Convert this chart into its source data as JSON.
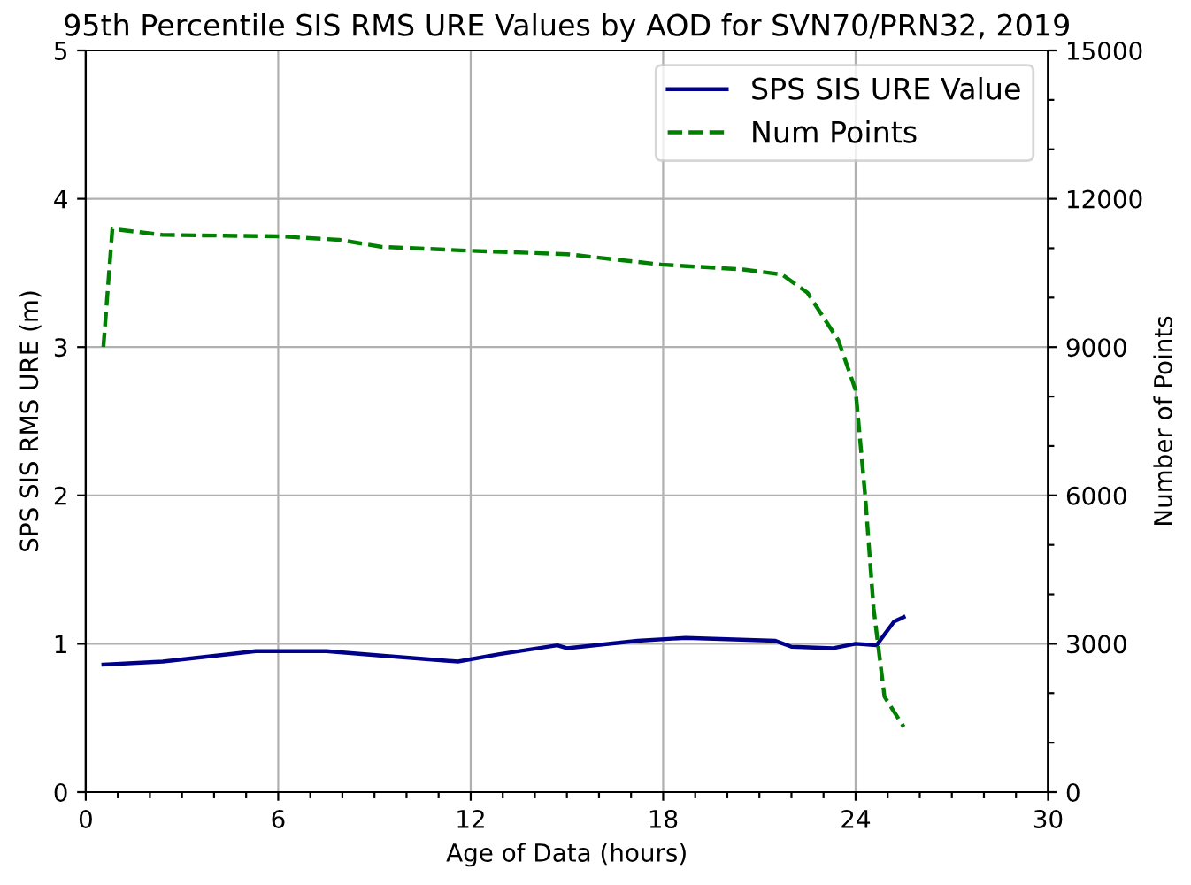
{
  "chart_data": {
    "type": "line",
    "title": "95th Percentile SIS RMS URE Values by AOD for SVN70/PRN32, 2019",
    "xlabel": "Age of Data (hours)",
    "ylabel": "SPS SIS RMS URE (m)",
    "y2label": "Number of Points",
    "xlim": [
      0,
      30
    ],
    "xticks": [
      0,
      {
        "value": 1,
        "label": null
      },
      {
        "value": 2,
        "label": null
      },
      {
        "value": 3,
        "label": null
      },
      {
        "value": 4,
        "label": null
      },
      {
        "value": 5,
        "label": null
      },
      6,
      {
        "value": 7,
        "label": null
      },
      {
        "value": 8,
        "label": null
      },
      {
        "value": 9,
        "label": null
      },
      {
        "value": 10,
        "label": null
      },
      {
        "value": 11,
        "label": null
      },
      12,
      {
        "value": 13,
        "label": null
      },
      {
        "value": 14,
        "label": null
      },
      {
        "value": 15,
        "label": null
      },
      {
        "value": 16,
        "label": null
      },
      {
        "value": 17,
        "label": null
      },
      18,
      {
        "value": 19,
        "label": null
      },
      {
        "value": 20,
        "label": null
      },
      {
        "value": 21,
        "label": null
      },
      {
        "value": 22,
        "label": null
      },
      {
        "value": 23,
        "label": null
      },
      24,
      {
        "value": 25,
        "label": null
      },
      {
        "value": 26,
        "label": null
      },
      {
        "value": 27,
        "label": null
      },
      {
        "value": 28,
        "label": null
      },
      {
        "value": 29,
        "label": null
      },
      30
    ],
    "ylim": [
      0,
      5
    ],
    "yticks": [
      0,
      1,
      2,
      3,
      4,
      5
    ],
    "y2lim": [
      0,
      15000
    ],
    "y2ticks": [
      0,
      {
        "value": 1000,
        "label": null
      },
      {
        "value": 2000,
        "label": null
      },
      3000,
      {
        "value": 4000,
        "label": null
      },
      {
        "value": 5000,
        "label": null
      },
      6000,
      {
        "value": 7000,
        "label": null
      },
      {
        "value": 8000,
        "label": null
      },
      9000,
      {
        "value": 10000,
        "label": null
      },
      {
        "value": 11000,
        "label": null
      },
      12000,
      {
        "value": 13000,
        "label": null
      },
      {
        "value": 14000,
        "label": null
      },
      15000
    ],
    "grid": true,
    "legend": "top right",
    "series": [
      {
        "name": "SPS SIS URE Value",
        "color": "#00008b",
        "line_style": "solid",
        "x": [
          0.55,
          2.4,
          5.3,
          7.5,
          9.2,
          11.6,
          12.9,
          14.7,
          15.0,
          17.2,
          18.7,
          21.5,
          22.0,
          23.3,
          24.0,
          24.65,
          25.2,
          25.5
        ],
        "values": [
          0.86,
          0.88,
          0.95,
          0.95,
          0.92,
          0.88,
          0.93,
          0.99,
          0.97,
          1.02,
          1.04,
          1.02,
          0.98,
          0.97,
          1.0,
          0.99,
          1.15,
          1.18
        ]
      },
      {
        "name": "Num Points",
        "color": "#008000",
        "line_style": "dashed",
        "axis": "y2",
        "x": [
          0.55,
          0.83,
          2.4,
          6.07,
          7.9,
          9.2,
          11.95,
          15.0,
          17.94,
          20.5,
          21.7,
          22.5,
          23.46,
          24.0,
          24.3,
          24.56,
          24.9,
          25.5
        ],
        "values": [
          9000,
          11390,
          11270,
          11240,
          11170,
          11030,
          10950,
          10880,
          10670,
          10570,
          10470,
          10100,
          9140,
          8130,
          5980,
          3720,
          1930,
          1320
        ]
      }
    ]
  }
}
